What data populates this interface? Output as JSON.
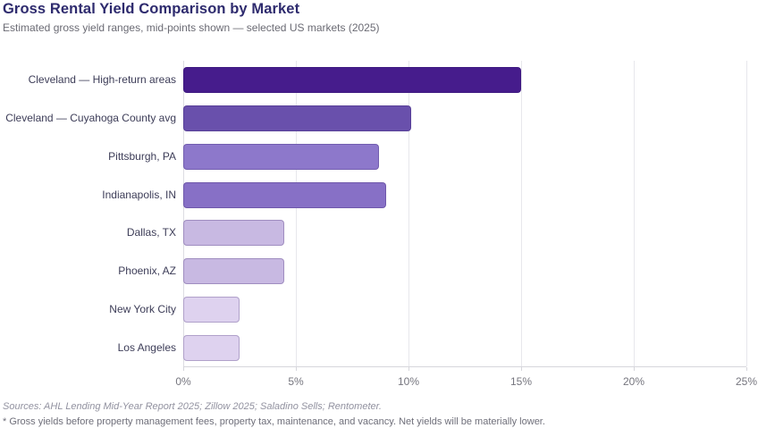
{
  "header": {
    "title": "Gross Rental Yield Comparison by Market",
    "subtitle": "Estimated gross yield ranges, mid-points shown — selected US markets (2025)"
  },
  "footer": {
    "sources": "Sources: AHL Lending Mid-Year Report 2025; Zillow 2025; Saladino Sells; Rentometer.",
    "note": "* Gross yields before property management fees, property tax, maintenance, and vacancy. Net yields will be materially lower."
  },
  "colors": {
    "title_text": "#2e2b6e",
    "subtitle_text": "#6b6b74",
    "category_text": "#3d3d58",
    "tick_text": "#75757e",
    "gridline": "#e7e7ec",
    "bar_scale_dark_to_light": [
      "#461c8c",
      "#6950ac",
      "#8770c6",
      "#8d78cb",
      "#c8b9e2",
      "#ded2ef"
    ]
  },
  "chart_data": {
    "type": "bar",
    "orientation": "horizontal",
    "title": "Gross Rental Yield Comparison by Market",
    "subtitle": "Estimated gross yield ranges, mid-points shown — selected US markets (2025)",
    "categories": [
      "Cleveland — High-return areas",
      "Cleveland — Cuyahoga County avg",
      "Pittsburgh, PA",
      "Indianapolis, IN",
      "Dallas, TX",
      "Phoenix, AZ",
      "New York City",
      "Los Angeles"
    ],
    "values": [
      15.0,
      10.1,
      8.7,
      9.0,
      4.5,
      4.5,
      2.5,
      2.5
    ],
    "bar_colors": [
      "#461c8c",
      "#6950ac",
      "#8d78cb",
      "#8770c6",
      "#c8b9e2",
      "#c8b9e2",
      "#ded2ef",
      "#ded2ef"
    ],
    "xlabel": "",
    "ylabel": "",
    "xlim": [
      0,
      25
    ],
    "x_tick_values": [
      0,
      5,
      10,
      15,
      20,
      25
    ],
    "x_tick_labels": [
      "0%",
      "5%",
      "10%",
      "15%",
      "20%",
      "25%"
    ],
    "grid": "vertical-only",
    "legend_position": "none",
    "value_unit": "percent"
  }
}
